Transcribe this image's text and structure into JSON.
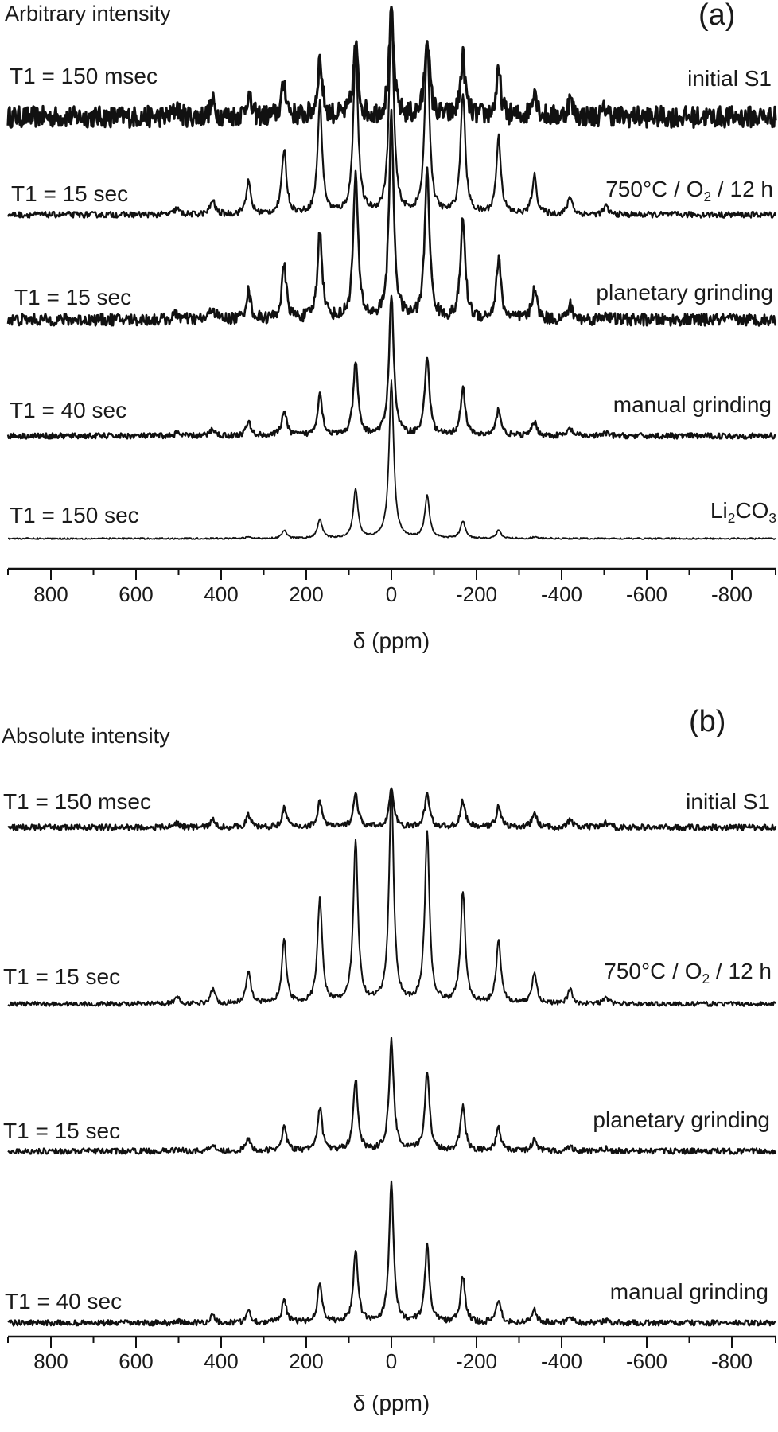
{
  "chart_data": [
    {
      "panel": "(a)",
      "type": "line",
      "title": "Arbitrary intensity",
      "xlabel": "δ (ppm)",
      "ylabel": "",
      "xlim": [
        900,
        -900
      ],
      "x_reversed": true,
      "x_ticks": [
        800,
        600,
        400,
        200,
        0,
        -200,
        -400,
        -600,
        -800
      ],
      "x_tick_labels": [
        "800",
        "600",
        "400",
        "200",
        "0",
        "-200",
        "-400",
        "-600",
        "-800"
      ],
      "x_minor_ticks": [
        700,
        500,
        300,
        100,
        -100,
        -300,
        -500,
        -700
      ],
      "grid": false,
      "legend": "none (labels placed on traces)",
      "sideband_spacing_ppm": 84,
      "peak_positions_ppm": [
        504,
        420,
        336,
        252,
        168,
        84,
        0,
        -84,
        -168,
        -252,
        -336,
        -420,
        -504
      ],
      "series": [
        {
          "name": "initial S1",
          "t1": "T1 = 150 msec",
          "noise": 0.09,
          "peak_heights": [
            0.08,
            0.12,
            0.18,
            0.28,
            0.48,
            0.6,
            0.85,
            0.68,
            0.5,
            0.36,
            0.24,
            0.14,
            0.08
          ]
        },
        {
          "name": "750°C / O2 / 12 h",
          "t1": "T1 = 15 sec",
          "noise": 0.015,
          "peak_heights": [
            0.03,
            0.07,
            0.16,
            0.32,
            0.55,
            0.82,
            1.0,
            0.85,
            0.6,
            0.38,
            0.19,
            0.09,
            0.04
          ]
        },
        {
          "name": "planetary grinding",
          "t1": "T1 = 15 sec",
          "noise": 0.03,
          "peak_heights": [
            0.03,
            0.06,
            0.14,
            0.26,
            0.44,
            0.72,
            1.0,
            0.75,
            0.5,
            0.3,
            0.16,
            0.07,
            0.03
          ]
        },
        {
          "name": "manual grinding",
          "t1": "T1 = 40 sec",
          "noise": 0.02,
          "peak_heights": [
            0.02,
            0.05,
            0.1,
            0.18,
            0.3,
            0.52,
            1.0,
            0.56,
            0.34,
            0.19,
            0.1,
            0.05,
            0.02
          ]
        },
        {
          "name": "Li2CO3",
          "t1": "T1 = 150 sec",
          "noise": 0.005,
          "peak_heights": [
            0.0,
            0.0,
            0.01,
            0.05,
            0.12,
            0.31,
            1.0,
            0.27,
            0.11,
            0.05,
            0.01,
            0.0,
            0.0
          ]
        }
      ]
    },
    {
      "panel": "(b)",
      "type": "line",
      "title": "Absolute intensity",
      "xlabel": "δ (ppm)",
      "ylabel": "",
      "xlim": [
        900,
        -900
      ],
      "x_reversed": true,
      "x_ticks": [
        800,
        600,
        400,
        200,
        0,
        -200,
        -400,
        -600,
        -800
      ],
      "x_tick_labels": [
        "800",
        "600",
        "400",
        "200",
        "0",
        "-200",
        "-400",
        "-600",
        "-800"
      ],
      "x_minor_ticks": [
        700,
        500,
        300,
        100,
        -100,
        -300,
        -500,
        -700
      ],
      "grid": false,
      "legend": "none (labels placed on traces)",
      "sideband_spacing_ppm": 84,
      "peak_positions_ppm": [
        504,
        420,
        336,
        252,
        168,
        84,
        0,
        -84,
        -168,
        -252,
        -336,
        -420,
        -504
      ],
      "series": [
        {
          "name": "initial S1",
          "t1": "T1 = 150 msec",
          "noise": 0.012,
          "peak_heights": [
            0.02,
            0.03,
            0.05,
            0.08,
            0.11,
            0.14,
            0.16,
            0.14,
            0.11,
            0.09,
            0.06,
            0.03,
            0.02
          ]
        },
        {
          "name": "750°C / O2 / 12 h",
          "t1": "T1 = 15 sec",
          "noise": 0.01,
          "peak_heights": [
            0.03,
            0.06,
            0.14,
            0.26,
            0.44,
            0.68,
            0.9,
            0.72,
            0.47,
            0.27,
            0.13,
            0.06,
            0.03
          ]
        },
        {
          "name": "planetary grinding",
          "t1": "T1 = 15 sec",
          "noise": 0.012,
          "peak_heights": [
            0.01,
            0.03,
            0.05,
            0.1,
            0.18,
            0.3,
            0.46,
            0.33,
            0.19,
            0.1,
            0.05,
            0.02,
            0.01
          ]
        },
        {
          "name": "manual grinding",
          "t1": "T1 = 40 sec",
          "noise": 0.012,
          "peak_heights": [
            0.01,
            0.03,
            0.05,
            0.1,
            0.17,
            0.3,
            0.58,
            0.32,
            0.19,
            0.1,
            0.06,
            0.03,
            0.01
          ]
        }
      ]
    }
  ],
  "panel_a": {
    "title": "Arbitrary intensity",
    "letter": "(a)",
    "traces": [
      {
        "t1": "T1 = 150 msec",
        "sample": "initial S1"
      },
      {
        "t1": "T1 = 15 sec",
        "sample_pre": "750°C / O",
        "sample_sub": "2",
        "sample_post": " / 12 h"
      },
      {
        "t1": "T1 = 15 sec",
        "sample": "planetary grinding"
      },
      {
        "t1": "T1 = 40 sec",
        "sample": "manual grinding"
      },
      {
        "t1": "T1 = 150 sec",
        "sample_pre": "Li",
        "sample_sub": "2",
        "sample_mid": "CO",
        "sample_sub2": "3"
      }
    ],
    "ticks": [
      "800",
      "600",
      "400",
      "200",
      "0",
      "-200",
      "-400",
      "-600",
      "-800"
    ],
    "xlabel": "δ (ppm)"
  },
  "panel_b": {
    "title": "Absolute intensity",
    "letter": "(b)",
    "traces": [
      {
        "t1": "T1 = 150 msec",
        "sample": "initial S1"
      },
      {
        "t1": "T1 = 15 sec",
        "sample_pre": "750°C / O",
        "sample_sub": "2",
        "sample_post": " / 12 h"
      },
      {
        "t1": "T1 = 15 sec",
        "sample": "planetary grinding"
      },
      {
        "t1": "T1 = 40 sec",
        "sample": "manual grinding"
      }
    ],
    "ticks": [
      "800",
      "600",
      "400",
      "200",
      "0",
      "-200",
      "-400",
      "-600",
      "-800"
    ],
    "xlabel": "δ (ppm)"
  },
  "style": {
    "line_color": "#111111",
    "text_color": "#1a1a1a",
    "background": "#ffffff"
  }
}
